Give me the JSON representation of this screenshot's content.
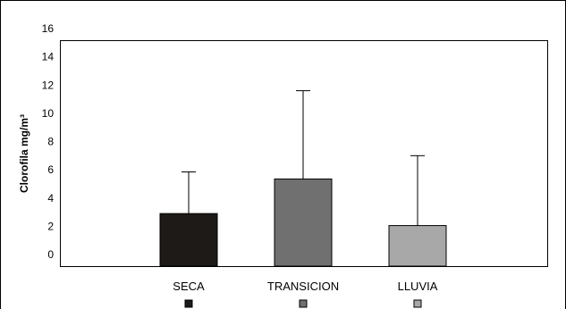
{
  "chart_data": {
    "type": "bar",
    "ylabel": "Clorofila mg/m³",
    "ylim": [
      0,
      16
    ],
    "yticks": [
      0,
      2,
      4,
      6,
      8,
      10,
      12,
      14,
      16
    ],
    "categories": [
      "SECA",
      "TRANSICION",
      "LLUVIA"
    ],
    "values": [
      2.9,
      5.35,
      2.05
    ],
    "error_upper": [
      5.85,
      11.6,
      7.0
    ],
    "colors": [
      "#1e1a18",
      "#707070",
      "#a8a8a8"
    ],
    "grid": false,
    "legend": "bottom"
  }
}
